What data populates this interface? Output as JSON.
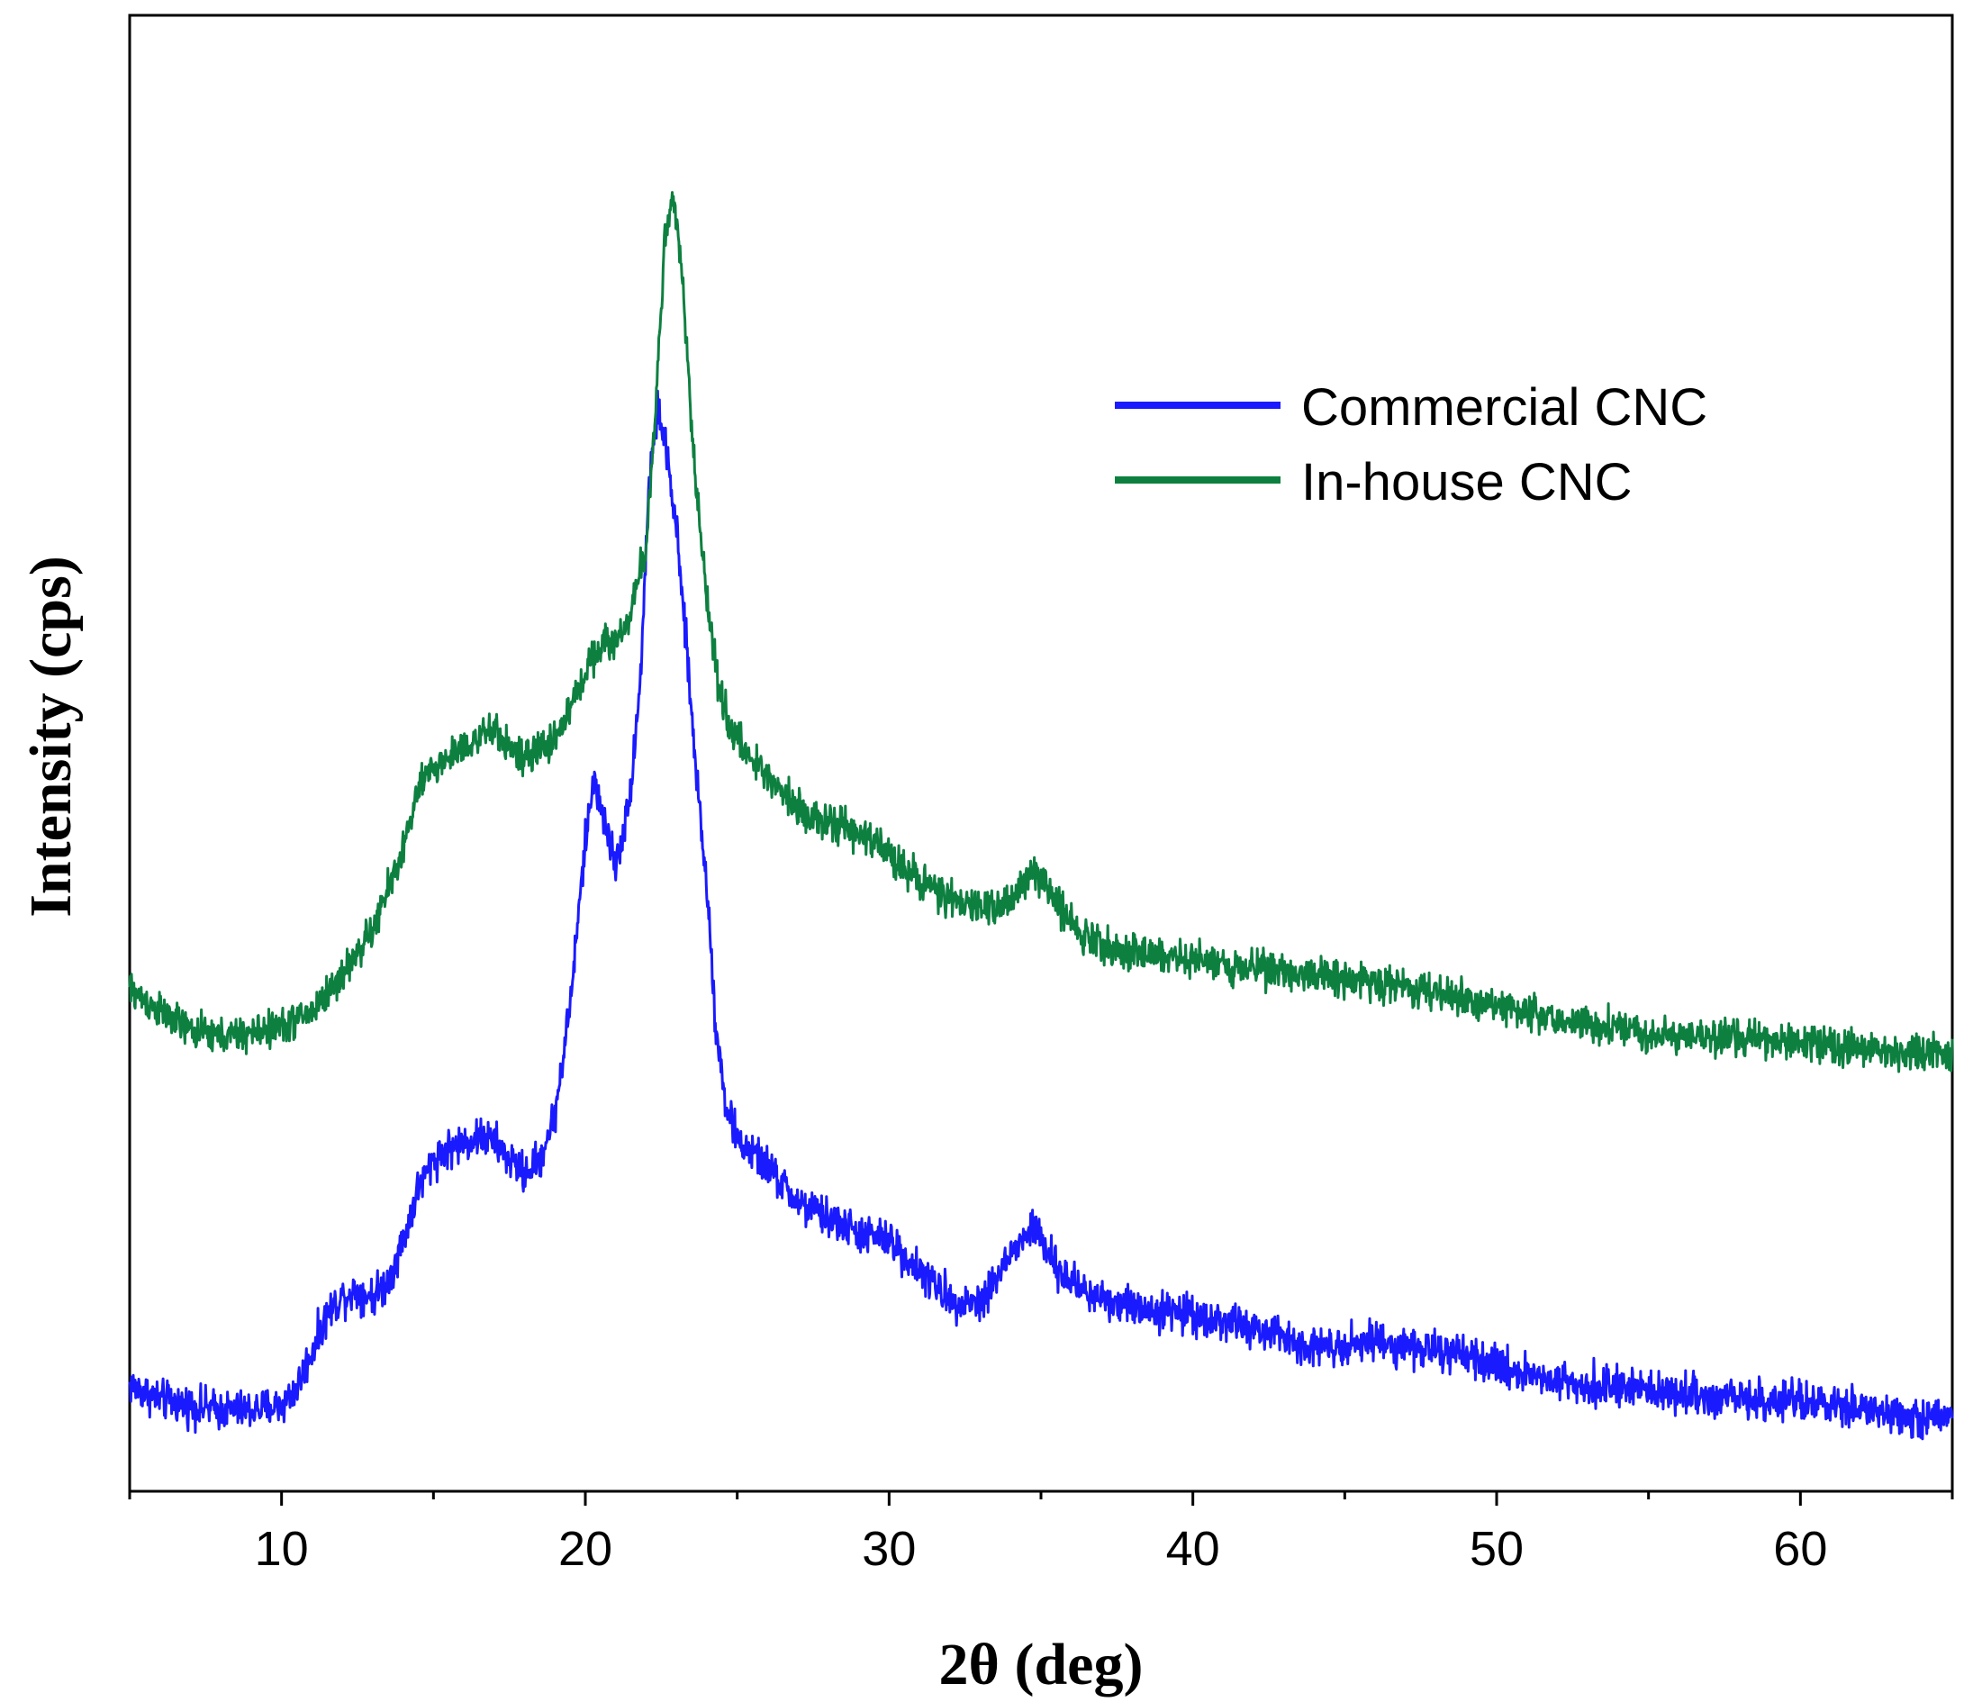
{
  "chart_data": {
    "type": "line",
    "title": "",
    "xlabel": "2θ (deg)",
    "ylabel": "Intensity (cps)",
    "xlim": [
      5,
      65
    ],
    "ylim": [
      0,
      100
    ],
    "x_ticks": [
      10,
      20,
      30,
      40,
      50,
      60
    ],
    "y_ticks_shown": false,
    "grid": false,
    "legend_position": "upper-right",
    "series": [
      {
        "name": "Commercial CNC",
        "color": "#1a1aff",
        "noise": 1.3,
        "x": [
          5,
          6,
          7,
          8,
          9,
          10,
          10.5,
          11,
          11.5,
          12,
          12.5,
          13,
          13.5,
          14,
          14.5,
          15,
          15.5,
          16,
          16.5,
          17,
          17.5,
          18,
          18.5,
          19,
          19.5,
          20,
          20.3,
          20.6,
          21,
          21.4,
          21.8,
          22.1,
          22.4,
          22.7,
          23,
          23.3,
          23.6,
          24,
          24.3,
          24.6,
          25,
          26,
          27,
          28,
          29,
          30,
          31,
          32,
          33,
          34,
          34.8,
          35.5,
          36.5,
          38,
          40,
          42,
          44,
          46,
          48,
          50,
          52,
          55,
          58,
          61,
          63,
          65
        ],
        "y": [
          7.2,
          6.2,
          5.8,
          5.5,
          5.5,
          5.8,
          7,
          9.5,
          12,
          13.2,
          13.6,
          13.2,
          14.2,
          17,
          20.5,
          22.5,
          23.2,
          23.6,
          24,
          23.7,
          22.5,
          21.5,
          22.5,
          25.5,
          33,
          44,
          48.5,
          45.5,
          42.5,
          46,
          54.5,
          68.5,
          73.5,
          70,
          65,
          58,
          50,
          41,
          31.5,
          26.5,
          23.8,
          22,
          19.5,
          18.5,
          17.5,
          17,
          15,
          13,
          12.8,
          16,
          18,
          15,
          13.5,
          12.5,
          12,
          11,
          9.8,
          10.2,
          9.5,
          8.5,
          7.5,
          6.8,
          6.3,
          5.8,
          5.2,
          4.8
        ]
      },
      {
        "name": "In-house CNC",
        "color": "#0d8040",
        "noise": 1.2,
        "x": [
          5,
          6,
          7,
          8,
          9,
          10,
          11,
          12,
          13,
          14,
          14.5,
          15,
          16,
          17,
          18,
          19,
          19.5,
          20,
          20.5,
          21,
          21.5,
          22,
          22.3,
          22.6,
          22.9,
          23.2,
          23.5,
          23.9,
          24.3,
          24.8,
          25.5,
          26.5,
          27.5,
          28.5,
          29.5,
          31,
          32,
          33,
          34,
          34.8,
          35.5,
          36.5,
          38,
          40,
          42,
          44,
          46,
          48,
          50,
          52,
          55,
          58,
          61,
          63,
          65
        ],
        "y": [
          34,
          32.5,
          31.2,
          30.8,
          31,
          31.5,
          32.5,
          35,
          38,
          43.5,
          47.5,
          49,
          50.5,
          51.5,
          49.5,
          51,
          53,
          55.5,
          57.5,
          57.5,
          59.5,
          64,
          73,
          84.5,
          87.5,
          82,
          72,
          62.5,
          55.5,
          51.5,
          49.5,
          47.5,
          45.5,
          45,
          44,
          41.5,
          40,
          39.5,
          40,
          42,
          40,
          37.5,
          36.5,
          36,
          35.5,
          35,
          34.5,
          33.8,
          33,
          32,
          31,
          30.6,
          30.2,
          29.8,
          29.5
        ]
      }
    ]
  }
}
